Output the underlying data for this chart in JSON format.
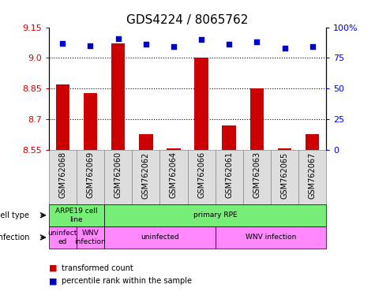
{
  "title": "GDS4224 / 8065762",
  "samples": [
    "GSM762068",
    "GSM762069",
    "GSM762060",
    "GSM762062",
    "GSM762064",
    "GSM762066",
    "GSM762061",
    "GSM762063",
    "GSM762065",
    "GSM762067"
  ],
  "transformed_counts": [
    8.87,
    8.83,
    9.07,
    8.63,
    8.56,
    9.0,
    8.67,
    8.85,
    8.56,
    8.63
  ],
  "percentile_ranks": [
    87,
    85,
    91,
    86,
    84,
    90,
    86,
    88,
    83,
    84
  ],
  "ylim": [
    8.55,
    9.15
  ],
  "yticks_left": [
    8.55,
    8.7,
    8.85,
    9.0,
    9.15
  ],
  "yticks_right": [
    0,
    25,
    50,
    75,
    100
  ],
  "right_ylim": [
    0,
    100
  ],
  "dotted_lines": [
    9.0,
    8.85,
    8.7
  ],
  "bar_color": "#cc0000",
  "dot_color": "#0000cc",
  "bar_width": 0.5,
  "title_fontsize": 11,
  "axis_tick_fontsize": 8,
  "sample_fontsize": 7,
  "cell_type_groups": [
    {
      "label": "ARPE19 cell\nline",
      "start": 0,
      "end": 2,
      "color": "#77ee77"
    },
    {
      "label": "primary RPE",
      "start": 2,
      "end": 10,
      "color": "#77ee77"
    }
  ],
  "infection_groups": [
    {
      "label": "uninfect\ned",
      "start": 0,
      "end": 1,
      "color": "#ff88ff"
    },
    {
      "label": "WNV\ninfection",
      "start": 1,
      "end": 2,
      "color": "#ff88ff"
    },
    {
      "label": "uninfected",
      "start": 2,
      "end": 6,
      "color": "#ff88ff"
    },
    {
      "label": "WNV infection",
      "start": 6,
      "end": 10,
      "color": "#ff88ff"
    }
  ],
  "cell_type_label": "cell type",
  "infection_label": "infection",
  "legend": [
    {
      "label": "transformed count",
      "color": "#cc0000"
    },
    {
      "label": "percentile rank within the sample",
      "color": "#0000cc"
    }
  ],
  "xticklabel_bg": "#dddddd",
  "xticklabel_border": "#888888"
}
